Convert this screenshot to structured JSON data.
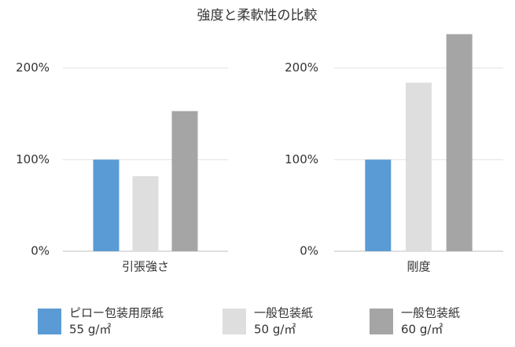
{
  "chart_data": {
    "type": "bar",
    "title": "強度と柔軟性の比較",
    "categories": [
      "引張強さ",
      "剛度"
    ],
    "series": [
      {
        "name": "ピロー包装用原紙",
        "weight": "55 g/㎡",
        "color": "#5b9bd5",
        "values": [
          100,
          100
        ]
      },
      {
        "name": "一般包装紙",
        "weight": "50 g/㎡",
        "color": "#dedede",
        "values": [
          82,
          184
        ]
      },
      {
        "name": "一般包装紙",
        "weight": "60 g/㎡",
        "color": "#a5a5a5",
        "values": [
          153,
          237
        ]
      }
    ],
    "ylim": [
      0,
      240
    ],
    "yticks": [
      {
        "value": 0,
        "label": "0%"
      },
      {
        "value": 100,
        "label": "100%"
      },
      {
        "value": 200,
        "label": "200%"
      }
    ],
    "grid": true
  }
}
